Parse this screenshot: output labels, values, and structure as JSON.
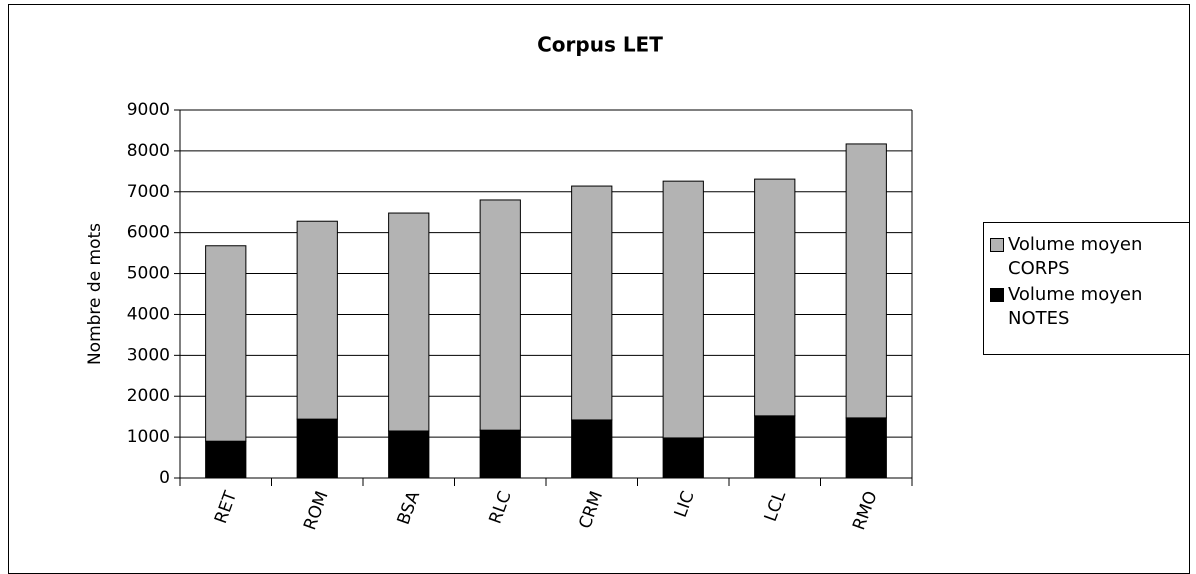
{
  "chart_data": {
    "type": "bar",
    "stacked": true,
    "title": "Corpus LET",
    "ylabel": "Nombre de mots",
    "categories": [
      "RET",
      "ROM",
      "BSA",
      "RLC",
      "CRM",
      "LIC",
      "LCL",
      "RMO"
    ],
    "series": [
      {
        "name": "Volume moyen CORPS",
        "color": "#b3b3b3",
        "values": [
          4780,
          4840,
          5330,
          5630,
          5720,
          6280,
          5790,
          6700
        ]
      },
      {
        "name": "Volume moyen NOTES",
        "color": "#000000",
        "values": [
          900,
          1440,
          1150,
          1170,
          1420,
          980,
          1520,
          1470
        ]
      }
    ],
    "ylim": [
      0,
      9000
    ],
    "yticks": [
      0,
      1000,
      2000,
      3000,
      4000,
      5000,
      6000,
      7000,
      8000,
      9000
    ],
    "grid": true,
    "legend": "right"
  }
}
